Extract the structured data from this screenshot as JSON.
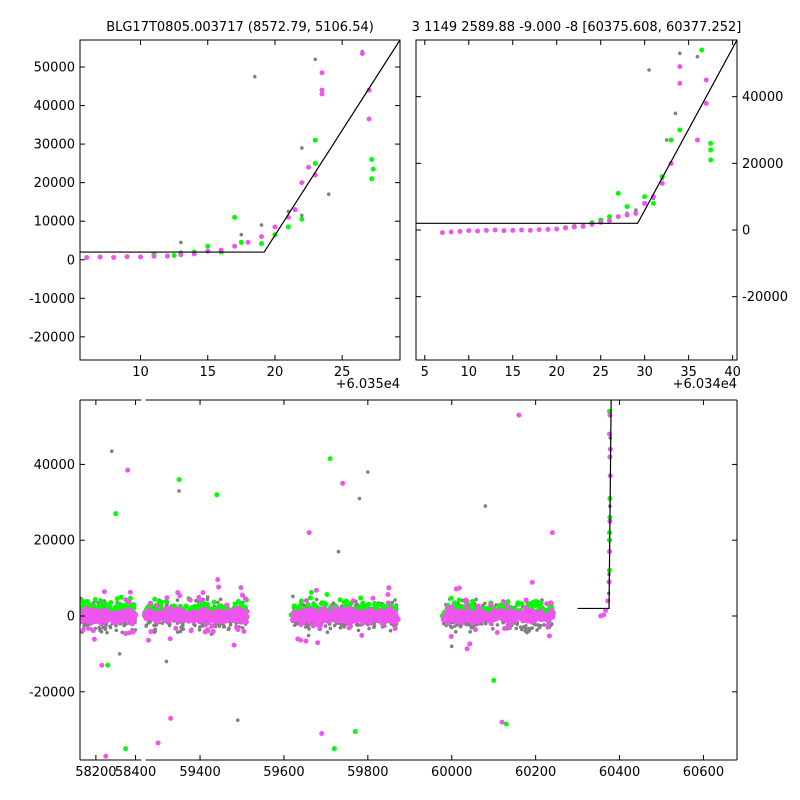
{
  "colors": {
    "gray": "#808080",
    "green": "#00ff00",
    "magenta": "#ee55ee",
    "line": "#000000"
  },
  "chart_data": [
    {
      "type": "scatter",
      "title": "BLG17T0805.003717 (8572.79, 5106.54)",
      "xlabel": "",
      "ylabel": "",
      "x_offset_label": "+6.035e4",
      "xlim": [
        5.5,
        29.3
      ],
      "ylim": [
        -26000,
        57000
      ],
      "xticks": [
        10,
        15,
        20,
        25
      ],
      "yticks": [
        -20000,
        -10000,
        0,
        10000,
        20000,
        30000,
        40000,
        50000
      ],
      "ytick_side": "left",
      "model_line": [
        [
          5.5,
          2000
        ],
        [
          19.2,
          2000
        ],
        [
          29.3,
          57000
        ]
      ],
      "series": [
        {
          "color": "magenta",
          "points": [
            [
              6,
              600
            ],
            [
              7,
              700
            ],
            [
              8,
              600
            ],
            [
              9,
              800
            ],
            [
              10,
              700
            ],
            [
              11,
              900
            ],
            [
              12,
              1000
            ],
            [
              13,
              1300
            ],
            [
              14,
              1500
            ],
            [
              15,
              2200
            ],
            [
              16,
              2500
            ],
            [
              17,
              3500
            ],
            [
              18,
              4500
            ],
            [
              19,
              6000
            ],
            [
              20,
              8500
            ],
            [
              21,
              11000
            ],
            [
              21.5,
              13000
            ],
            [
              22,
              20000
            ],
            [
              22.5,
              24000
            ],
            [
              23,
              22000
            ],
            [
              23.5,
              48500
            ],
            [
              23.5,
              44000
            ],
            [
              23.5,
              43000
            ],
            [
              27,
              44000
            ],
            [
              27,
              36500
            ],
            [
              26.5,
              53500
            ]
          ]
        },
        {
          "color": "green",
          "points": [
            [
              11,
              1500
            ],
            [
              12,
              900
            ],
            [
              12.5,
              1100
            ],
            [
              13,
              1800
            ],
            [
              14,
              2000
            ],
            [
              15,
              3500
            ],
            [
              16,
              2000
            ],
            [
              17,
              11000
            ],
            [
              17.5,
              4500
            ],
            [
              19,
              4200
            ],
            [
              20,
              6500
            ],
            [
              21,
              8500
            ],
            [
              22,
              10500
            ],
            [
              23,
              25000
            ],
            [
              23,
              31000
            ],
            [
              27.2,
              26000
            ],
            [
              27.3,
              23500
            ],
            [
              27.2,
              21000
            ]
          ]
        },
        {
          "color": "gray",
          "points": [
            [
              13,
              4500
            ],
            [
              14,
              2200
            ],
            [
              16,
              2500
            ],
            [
              17.5,
              6500
            ],
            [
              18.5,
              47500
            ],
            [
              19,
              9000
            ],
            [
              21,
              12500
            ],
            [
              22,
              29000
            ],
            [
              23,
              52000
            ],
            [
              24,
              17000
            ],
            [
              26.5,
              54000
            ],
            [
              22,
              11500
            ]
          ]
        }
      ]
    },
    {
      "type": "scatter",
      "title": "3 1149 2589.88 -9.000 -8 [60375.608, 60377.252]",
      "xlabel": "",
      "ylabel": "",
      "x_offset_label": "+6.034e4",
      "xlim": [
        4,
        40.5
      ],
      "ylim": [
        -39000,
        57000
      ],
      "xticks": [
        5,
        10,
        15,
        20,
        25,
        30,
        35,
        40
      ],
      "yticks": [
        -20000,
        0,
        20000,
        40000
      ],
      "ytick_side": "right",
      "model_line": [
        [
          4,
          2000
        ],
        [
          29.2,
          2000
        ],
        [
          40.5,
          57000
        ]
      ],
      "series": [
        {
          "color": "magenta",
          "points": [
            [
              7,
              -800
            ],
            [
              8,
              -600
            ],
            [
              9,
              -400
            ],
            [
              10,
              -200
            ],
            [
              11,
              -300
            ],
            [
              12,
              -100
            ],
            [
              13,
              0
            ],
            [
              14,
              -200
            ],
            [
              15,
              -100
            ],
            [
              16,
              0
            ],
            [
              17,
              -100
            ],
            [
              18,
              100
            ],
            [
              19,
              200
            ],
            [
              20,
              300
            ],
            [
              21,
              600
            ],
            [
              22,
              900
            ],
            [
              23,
              1200
            ],
            [
              24,
              1700
            ],
            [
              25,
              2300
            ],
            [
              26,
              2800
            ],
            [
              27,
              4000
            ],
            [
              28,
              4500
            ],
            [
              29,
              5000
            ],
            [
              30,
              8000
            ],
            [
              31,
              10000
            ],
            [
              32,
              14000
            ],
            [
              33,
              20000
            ],
            [
              34,
              44000
            ],
            [
              34,
              49000
            ],
            [
              36,
              27000
            ],
            [
              37,
              45000
            ],
            [
              37,
              38000
            ]
          ]
        },
        {
          "color": "green",
          "points": [
            [
              21,
              700
            ],
            [
              22,
              1000
            ],
            [
              23,
              1100
            ],
            [
              24,
              2200
            ],
            [
              25,
              3000
            ],
            [
              26,
              4000
            ],
            [
              27,
              11000
            ],
            [
              28,
              7000
            ],
            [
              30,
              10000
            ],
            [
              31,
              8000
            ],
            [
              32,
              16000
            ],
            [
              33,
              27000
            ],
            [
              34,
              30000
            ],
            [
              36.5,
              54000
            ],
            [
              37.5,
              26000
            ],
            [
              37.5,
              24000
            ],
            [
              37.5,
              21000
            ]
          ]
        },
        {
          "color": "gray",
          "points": [
            [
              22,
              1300
            ],
            [
              25,
              2500
            ],
            [
              26,
              3300
            ],
            [
              28,
              5000
            ],
            [
              29,
              6000
            ],
            [
              30.5,
              48000
            ],
            [
              31,
              9500
            ],
            [
              32,
              15500
            ],
            [
              32.5,
              27000
            ],
            [
              33.5,
              35000
            ],
            [
              34,
              53000
            ],
            [
              36,
              52000
            ]
          ]
        }
      ]
    },
    {
      "type": "scatter",
      "title": "",
      "xlabel": "",
      "ylabel": "",
      "xlim": [
        58120,
        60680
      ],
      "ylim": [
        -38000,
        57000
      ],
      "xticks": [
        58200,
        58400,
        59400,
        59600,
        59800,
        60000,
        60200,
        60400,
        60600
      ],
      "yticks": [
        -20000,
        0,
        20000,
        40000
      ],
      "axis_break": [
        58430,
        59270
      ],
      "model_line": [
        [
          60300,
          2000
        ],
        [
          60375,
          2000
        ],
        [
          60380,
          57000
        ]
      ],
      "clusters": [
        {
          "x_range": [
            58120,
            58400
          ],
          "count": 230
        },
        {
          "x_range": [
            59270,
            59510
          ],
          "count": 340
        },
        {
          "x_range": [
            59620,
            59870
          ],
          "count": 340
        },
        {
          "x_range": [
            59980,
            60240
          ],
          "count": 320
        }
      ],
      "outliers": [
        {
          "color": "gray",
          "points": [
            [
              58280,
              43500
            ],
            [
              59350,
              33000
            ],
            [
              59490,
              -27500
            ],
            [
              59320,
              -12000
            ],
            [
              59800,
              38000
            ],
            [
              59780,
              31000
            ],
            [
              60000,
              -8000
            ],
            [
              60080,
              29000
            ],
            [
              59730,
              17000
            ],
            [
              58320,
              -10000
            ]
          ]
        },
        {
          "color": "green",
          "points": [
            [
              58300,
              27000
            ],
            [
              58350,
              -35000
            ],
            [
              59350,
              36000
            ],
            [
              59440,
              32000
            ],
            [
              59710,
              41500
            ],
            [
              59770,
              -30500
            ],
            [
              60100,
              -17000
            ],
            [
              60130,
              -28500
            ],
            [
              58260,
              -13000
            ],
            [
              59720,
              -35000
            ]
          ]
        },
        {
          "color": "magenta",
          "points": [
            [
              58360,
              38500
            ],
            [
              58250,
              -37000
            ],
            [
              59330,
              -27000
            ],
            [
              59300,
              -33500
            ],
            [
              59690,
              -31000
            ],
            [
              59740,
              35000
            ],
            [
              60160,
              53000
            ],
            [
              60120,
              -28000
            ],
            [
              59660,
              22000
            ],
            [
              58230,
              -13000
            ],
            [
              60240,
              22000
            ]
          ]
        }
      ],
      "event_points": [
        {
          "color": "magenta",
          "points": [
            [
              60355,
              0
            ],
            [
              60362,
              300
            ],
            [
              60367,
              1500
            ],
            [
              60372,
              4000
            ],
            [
              60375,
              9000
            ],
            [
              60376,
              17000
            ],
            [
              60377,
              25000
            ],
            [
              60377,
              42000
            ],
            [
              60378,
              44000
            ],
            [
              60378,
              37000
            ],
            [
              60377,
              53000
            ],
            [
              60376,
              48000
            ]
          ]
        },
        {
          "color": "green",
          "points": [
            [
              60376,
              12000
            ],
            [
              60376,
              22000
            ],
            [
              60377,
              26000
            ],
            [
              60377,
              31000
            ],
            [
              60376,
              54000
            ],
            [
              60376,
              20000
            ]
          ]
        },
        {
          "color": "gray",
          "points": [
            [
              60374,
              6000
            ],
            [
              60375,
              11000
            ],
            [
              60377,
              29000
            ],
            [
              60378,
              47000
            ]
          ]
        }
      ]
    }
  ]
}
